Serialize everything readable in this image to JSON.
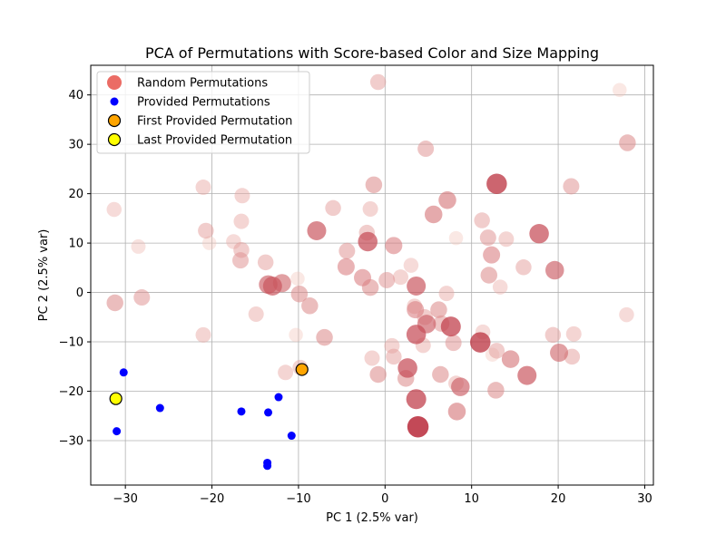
{
  "chart_data": {
    "type": "scatter",
    "title": "PCA of Permutations with Score-based Color and Size Mapping",
    "xlabel": "PC 1 (2.5% var)",
    "ylabel": "PC 2 (2.5% var)",
    "xlim": [
      -34,
      31
    ],
    "ylim": [
      -39,
      46
    ],
    "xticks": [
      -30,
      -20,
      -10,
      0,
      10,
      20,
      30
    ],
    "yticks": [
      -30,
      -20,
      -10,
      0,
      10,
      20,
      30,
      40
    ],
    "grid": true,
    "legend": {
      "placement": "top-left",
      "entries": [
        {
          "label": "Random Permutations",
          "marker": "circle-large",
          "color": "#e8524a"
        },
        {
          "label": "Provided Permutations",
          "marker": "circle-small",
          "color": "#0000ff"
        },
        {
          "label": "First Provided Permutation",
          "marker": "circle-outlined",
          "color": "#ffa500"
        },
        {
          "label": "Last Provided Permutation",
          "marker": "circle-outlined",
          "color": "#ffff00"
        }
      ]
    },
    "series": [
      {
        "name": "Random Permutations",
        "color_scale": [
          "#fde0d2",
          "#b2182b"
        ],
        "points": [
          {
            "x": -0.8,
            "y": 42.6,
            "s": 0.35
          },
          {
            "x": 27.1,
            "y": 41.0,
            "s": 0.15
          },
          {
            "x": 28.0,
            "y": 30.3,
            "s": 0.45
          },
          {
            "x": 4.7,
            "y": 29.1,
            "s": 0.4
          },
          {
            "x": 12.9,
            "y": 22.0,
            "s": 0.85
          },
          {
            "x": 21.5,
            "y": 21.5,
            "s": 0.4
          },
          {
            "x": -1.3,
            "y": 21.8,
            "s": 0.45
          },
          {
            "x": -21.0,
            "y": 21.3,
            "s": 0.3
          },
          {
            "x": -16.5,
            "y": 19.6,
            "s": 0.3
          },
          {
            "x": 7.2,
            "y": 18.7,
            "s": 0.55
          },
          {
            "x": -31.3,
            "y": 16.8,
            "s": 0.25
          },
          {
            "x": -6.0,
            "y": 17.1,
            "s": 0.35
          },
          {
            "x": -1.7,
            "y": 16.9,
            "s": 0.3
          },
          {
            "x": 5.6,
            "y": 15.8,
            "s": 0.55
          },
          {
            "x": 11.2,
            "y": 14.6,
            "s": 0.35
          },
          {
            "x": -16.6,
            "y": 14.4,
            "s": 0.3
          },
          {
            "x": -20.7,
            "y": 12.5,
            "s": 0.35
          },
          {
            "x": -7.9,
            "y": 12.5,
            "s": 0.7
          },
          {
            "x": -2.1,
            "y": 12.1,
            "s": 0.35
          },
          {
            "x": 11.9,
            "y": 11.1,
            "s": 0.4
          },
          {
            "x": 14.0,
            "y": 10.8,
            "s": 0.3
          },
          {
            "x": 8.2,
            "y": 11.0,
            "s": 0.15
          },
          {
            "x": 17.8,
            "y": 11.9,
            "s": 0.75
          },
          {
            "x": -2.0,
            "y": 10.3,
            "s": 0.75
          },
          {
            "x": -17.5,
            "y": 10.3,
            "s": 0.25
          },
          {
            "x": -20.3,
            "y": 10.0,
            "s": 0.15
          },
          {
            "x": -28.5,
            "y": 9.3,
            "s": 0.2
          },
          {
            "x": 1.0,
            "y": 9.5,
            "s": 0.5
          },
          {
            "x": -16.6,
            "y": 8.6,
            "s": 0.35
          },
          {
            "x": -4.4,
            "y": 8.4,
            "s": 0.4
          },
          {
            "x": 12.3,
            "y": 7.6,
            "s": 0.5
          },
          {
            "x": -16.7,
            "y": 6.5,
            "s": 0.4
          },
          {
            "x": -13.8,
            "y": 6.1,
            "s": 0.35
          },
          {
            "x": 3.0,
            "y": 5.5,
            "s": 0.25
          },
          {
            "x": -4.5,
            "y": 5.2,
            "s": 0.5
          },
          {
            "x": 16.0,
            "y": 5.1,
            "s": 0.35
          },
          {
            "x": 19.6,
            "y": 4.5,
            "s": 0.65
          },
          {
            "x": 12.0,
            "y": 3.5,
            "s": 0.45
          },
          {
            "x": -2.6,
            "y": 3.0,
            "s": 0.5
          },
          {
            "x": 1.8,
            "y": 3.1,
            "s": 0.3
          },
          {
            "x": 0.2,
            "y": 2.5,
            "s": 0.4
          },
          {
            "x": -10.1,
            "y": 2.8,
            "s": 0.15
          },
          {
            "x": -13.5,
            "y": 1.6,
            "s": 0.65
          },
          {
            "x": -11.9,
            "y": 1.9,
            "s": 0.6
          },
          {
            "x": -13.0,
            "y": 1.3,
            "s": 0.7
          },
          {
            "x": -1.7,
            "y": 1.0,
            "s": 0.45
          },
          {
            "x": 3.6,
            "y": 1.3,
            "s": 0.7
          },
          {
            "x": 13.3,
            "y": 1.1,
            "s": 0.25
          },
          {
            "x": -9.9,
            "y": -0.3,
            "s": 0.45
          },
          {
            "x": -28.1,
            "y": -1.0,
            "s": 0.4
          },
          {
            "x": 7.1,
            "y": -0.2,
            "s": 0.3
          },
          {
            "x": -31.2,
            "y": -2.1,
            "s": 0.45
          },
          {
            "x": -8.7,
            "y": -2.7,
            "s": 0.45
          },
          {
            "x": 3.4,
            "y": -2.8,
            "s": 0.3
          },
          {
            "x": 3.5,
            "y": -3.5,
            "s": 0.5
          },
          {
            "x": 6.2,
            "y": -3.5,
            "s": 0.45
          },
          {
            "x": -14.9,
            "y": -4.4,
            "s": 0.3
          },
          {
            "x": 27.9,
            "y": -4.5,
            "s": 0.25
          },
          {
            "x": 4.6,
            "y": -5.0,
            "s": 0.35
          },
          {
            "x": 4.8,
            "y": -6.4,
            "s": 0.65
          },
          {
            "x": 6.5,
            "y": -6.3,
            "s": 0.4
          },
          {
            "x": 7.6,
            "y": -6.9,
            "s": 0.8
          },
          {
            "x": 11.3,
            "y": -8.0,
            "s": 0.25
          },
          {
            "x": 3.6,
            "y": -8.5,
            "s": 0.75
          },
          {
            "x": -21.0,
            "y": -8.6,
            "s": 0.3
          },
          {
            "x": 19.4,
            "y": -8.6,
            "s": 0.35
          },
          {
            "x": 21.8,
            "y": -8.4,
            "s": 0.3
          },
          {
            "x": -10.3,
            "y": -8.6,
            "s": 0.15
          },
          {
            "x": -7.0,
            "y": -9.1,
            "s": 0.45
          },
          {
            "x": 11.0,
            "y": -10.1,
            "s": 0.85
          },
          {
            "x": 7.9,
            "y": -10.2,
            "s": 0.4
          },
          {
            "x": 4.4,
            "y": -10.7,
            "s": 0.3
          },
          {
            "x": 0.8,
            "y": -10.8,
            "s": 0.3
          },
          {
            "x": 12.9,
            "y": -11.8,
            "s": 0.35
          },
          {
            "x": 12.4,
            "y": -12.6,
            "s": 0.15
          },
          {
            "x": 20.1,
            "y": -12.2,
            "s": 0.6
          },
          {
            "x": 21.6,
            "y": -13.0,
            "s": 0.35
          },
          {
            "x": 1.0,
            "y": -13.0,
            "s": 0.35
          },
          {
            "x": -1.5,
            "y": -13.3,
            "s": 0.3
          },
          {
            "x": 14.5,
            "y": -13.5,
            "s": 0.55
          },
          {
            "x": -9.8,
            "y": -15.2,
            "s": 0.3
          },
          {
            "x": 2.6,
            "y": -15.3,
            "s": 0.75
          },
          {
            "x": -11.5,
            "y": -16.2,
            "s": 0.3
          },
          {
            "x": -0.8,
            "y": -16.6,
            "s": 0.45
          },
          {
            "x": 6.4,
            "y": -16.6,
            "s": 0.45
          },
          {
            "x": 16.4,
            "y": -16.8,
            "s": 0.7
          },
          {
            "x": 2.4,
            "y": -17.4,
            "s": 0.45
          },
          {
            "x": 8.2,
            "y": -18.4,
            "s": 0.3
          },
          {
            "x": 8.7,
            "y": -19.1,
            "s": 0.65
          },
          {
            "x": 12.8,
            "y": -19.8,
            "s": 0.45
          },
          {
            "x": 3.6,
            "y": -21.6,
            "s": 0.8
          },
          {
            "x": 8.3,
            "y": -24.1,
            "s": 0.55
          },
          {
            "x": 3.8,
            "y": -27.2,
            "s": 0.95
          }
        ]
      },
      {
        "name": "Provided Permutations",
        "color": "#0000ff",
        "points": [
          {
            "x": -30.2,
            "y": -16.2
          },
          {
            "x": -12.3,
            "y": -21.2
          },
          {
            "x": -26.0,
            "y": -23.4
          },
          {
            "x": -16.6,
            "y": -24.1
          },
          {
            "x": -13.5,
            "y": -24.3
          },
          {
            "x": -31.0,
            "y": -28.1
          },
          {
            "x": -10.8,
            "y": -29.0
          },
          {
            "x": -13.6,
            "y": -34.5
          },
          {
            "x": -13.6,
            "y": -35.1
          }
        ]
      },
      {
        "name": "First Provided Permutation",
        "color": "#ffa500",
        "points": [
          {
            "x": -9.6,
            "y": -15.6
          }
        ]
      },
      {
        "name": "Last Provided Permutation",
        "color": "#ffff00",
        "points": [
          {
            "x": -31.1,
            "y": -21.5
          }
        ]
      }
    ]
  }
}
